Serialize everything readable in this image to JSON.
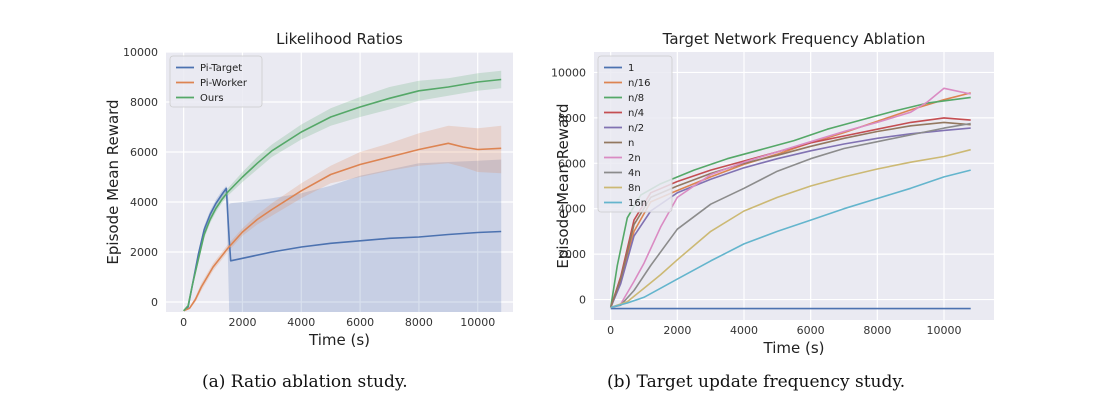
{
  "captions": {
    "a": "(a) Ratio ablation study.",
    "b": "(b) Target update frequency study."
  },
  "chart_data": [
    {
      "type": "line",
      "title": "Likelihood Ratios",
      "xlabel": "Time (s)",
      "ylabel": "Episode Mean Reward",
      "xlim": [
        -600,
        11200
      ],
      "ylim": [
        -400,
        10000
      ],
      "xticks": [
        0,
        2000,
        4000,
        6000,
        8000,
        10000
      ],
      "yticks": [
        0,
        2000,
        4000,
        6000,
        8000,
        10000
      ],
      "grid": true,
      "legend": "top-left",
      "background": "#eaeaf2",
      "series": [
        {
          "name": "Pi-Target",
          "color": "#4c72b0",
          "x": [
            0,
            150,
            300,
            500,
            700,
            900,
            1100,
            1300,
            1450,
            1550,
            1600,
            2000,
            3000,
            4000,
            5000,
            6000,
            7000,
            8000,
            9000,
            10000,
            10800
          ],
          "y": [
            -350,
            -200,
            700,
            1900,
            2900,
            3500,
            3950,
            4300,
            4550,
            2500,
            1650,
            1750,
            2000,
            2200,
            2350,
            2450,
            2550,
            2600,
            2700,
            2780,
            2820
          ],
          "lower": [
            -350,
            -250,
            600,
            1800,
            2750,
            3350,
            3800,
            4150,
            4400,
            -400,
            -400,
            -400,
            -400,
            -400,
            -400,
            -400,
            -400,
            -400,
            -400,
            -400,
            -400
          ],
          "upper": [
            -350,
            -150,
            800,
            2000,
            3050,
            3650,
            4100,
            4450,
            4650,
            3900,
            3950,
            4000,
            4150,
            4350,
            4650,
            5050,
            5300,
            5550,
            5600,
            5650,
            5700
          ]
        },
        {
          "name": "Pi-Worker",
          "color": "#dd8452",
          "x": [
            0,
            200,
            400,
            600,
            800,
            1000,
            1500,
            2000,
            2500,
            3000,
            4000,
            5000,
            6000,
            7000,
            8000,
            9000,
            9500,
            10000,
            10800
          ],
          "y": [
            -350,
            -250,
            100,
            600,
            1000,
            1400,
            2150,
            2800,
            3300,
            3700,
            4450,
            5100,
            5500,
            5800,
            6100,
            6350,
            6200,
            6100,
            6150
          ],
          "lower": [
            -350,
            -280,
            0,
            450,
            850,
            1250,
            2000,
            2650,
            3100,
            3450,
            4150,
            4750,
            5000,
            5250,
            5450,
            5550,
            5400,
            5200,
            5150
          ],
          "upper": [
            -350,
            -220,
            200,
            750,
            1150,
            1550,
            2300,
            2950,
            3500,
            3950,
            4750,
            5450,
            6000,
            6350,
            6750,
            7050,
            7000,
            6950,
            7050
          ]
        },
        {
          "name": "Ours",
          "color": "#55a868",
          "x": [
            0,
            150,
            300,
            500,
            700,
            900,
            1100,
            1300,
            1500,
            2000,
            2500,
            3000,
            4000,
            5000,
            6000,
            7000,
            8000,
            9000,
            10000,
            10800
          ],
          "y": [
            -350,
            -150,
            700,
            1700,
            2700,
            3300,
            3750,
            4100,
            4400,
            5000,
            5550,
            6050,
            6800,
            7400,
            7800,
            8150,
            8450,
            8600,
            8800,
            8900
          ],
          "lower": [
            -350,
            -200,
            600,
            1550,
            2550,
            3150,
            3600,
            3950,
            4250,
            4800,
            5300,
            5800,
            6500,
            7050,
            7400,
            7700,
            8050,
            8250,
            8450,
            8550
          ],
          "upper": [
            -350,
            -100,
            800,
            1850,
            2850,
            3450,
            3900,
            4250,
            4550,
            5200,
            5800,
            6300,
            7100,
            7750,
            8200,
            8600,
            8850,
            8950,
            9150,
            9250
          ]
        }
      ]
    },
    {
      "type": "line",
      "title": "Target Network Frequency Ablation",
      "xlabel": "Time (s)",
      "ylabel": "Episode Mean Reward",
      "xlim": [
        -500,
        11500
      ],
      "ylim": [
        -900,
        10900
      ],
      "xticks": [
        0,
        2000,
        4000,
        6000,
        8000,
        10000
      ],
      "yticks": [
        0,
        2000,
        4000,
        6000,
        8000,
        10000
      ],
      "grid": true,
      "legend": "top-left",
      "background": "#eaeaf2",
      "series": [
        {
          "name": "1",
          "color": "#4c72b0",
          "x": [
            0,
            10800
          ],
          "y": [
            -400,
            -400
          ]
        },
        {
          "name": "n/16",
          "color": "#dd8452",
          "x": [
            0,
            300,
            700,
            1200,
            2000,
            3000,
            4000,
            5000,
            6000,
            7000,
            8000,
            9000,
            10000,
            10800
          ],
          "y": [
            -350,
            800,
            3000,
            4300,
            4800,
            5400,
            5950,
            6400,
            6900,
            7350,
            7850,
            8350,
            8800,
            9100
          ]
        },
        {
          "name": "n/8",
          "color": "#55a868",
          "x": [
            0,
            200,
            500,
            900,
            1500,
            2500,
            3500,
            4500,
            5500,
            6500,
            7500,
            8500,
            9500,
            10800
          ],
          "y": [
            -350,
            1500,
            3600,
            4600,
            5100,
            5700,
            6200,
            6600,
            7000,
            7500,
            7900,
            8300,
            8650,
            8900
          ]
        },
        {
          "name": "n/4",
          "color": "#c44e52",
          "x": [
            0,
            300,
            700,
            1200,
            2000,
            3000,
            4000,
            5000,
            6000,
            7000,
            8000,
            9000,
            10000,
            10800
          ],
          "y": [
            -350,
            1000,
            3500,
            4700,
            5200,
            5700,
            6100,
            6500,
            6900,
            7200,
            7500,
            7800,
            8000,
            7900
          ]
        },
        {
          "name": "n/2",
          "color": "#8172b2",
          "x": [
            0,
            300,
            700,
            1200,
            2000,
            3000,
            4000,
            5000,
            6000,
            7000,
            8000,
            9000,
            10000,
            10800
          ],
          "y": [
            -350,
            700,
            2800,
            3900,
            4700,
            5300,
            5800,
            6200,
            6550,
            6850,
            7100,
            7300,
            7450,
            7550
          ]
        },
        {
          "name": "n",
          "color": "#937860",
          "x": [
            0,
            300,
            700,
            1200,
            2000,
            3000,
            4000,
            5000,
            6000,
            7000,
            8000,
            9000,
            10000,
            10800
          ],
          "y": [
            -350,
            900,
            3300,
            4500,
            5000,
            5550,
            6000,
            6350,
            6750,
            7100,
            7400,
            7650,
            7800,
            7700
          ]
        },
        {
          "name": "2n",
          "color": "#da8bc3",
          "x": [
            0,
            300,
            700,
            1000,
            1500,
            2000,
            3000,
            4000,
            5000,
            6000,
            7000,
            8000,
            9000,
            9500,
            10000,
            10800
          ],
          "y": [
            -350,
            -200,
            800,
            1600,
            3200,
            4500,
            5500,
            6050,
            6500,
            6950,
            7400,
            7800,
            8250,
            8700,
            9300,
            9050
          ]
        },
        {
          "name": "4n",
          "color": "#8c8c8c",
          "x": [
            0,
            300,
            700,
            1200,
            2000,
            3000,
            4000,
            5000,
            6000,
            7000,
            8000,
            9000,
            10000,
            10800
          ],
          "y": [
            -350,
            -250,
            400,
            1500,
            3100,
            4200,
            4900,
            5650,
            6200,
            6650,
            6950,
            7250,
            7550,
            7750
          ]
        },
        {
          "name": "8n",
          "color": "#ccb974",
          "x": [
            0,
            500,
            1000,
            1500,
            2000,
            3000,
            4000,
            5000,
            6000,
            7000,
            8000,
            9000,
            10000,
            10800
          ],
          "y": [
            -350,
            -100,
            500,
            1100,
            1750,
            3000,
            3900,
            4500,
            5000,
            5400,
            5750,
            6050,
            6300,
            6600
          ]
        },
        {
          "name": "16n",
          "color": "#64b5cd",
          "x": [
            0,
            500,
            1000,
            1500,
            2000,
            3000,
            4000,
            5000,
            6000,
            7000,
            8000,
            9000,
            10000,
            10800
          ],
          "y": [
            -350,
            -150,
            100,
            500,
            900,
            1700,
            2450,
            3000,
            3500,
            4000,
            4450,
            4900,
            5400,
            5700
          ]
        }
      ]
    }
  ]
}
